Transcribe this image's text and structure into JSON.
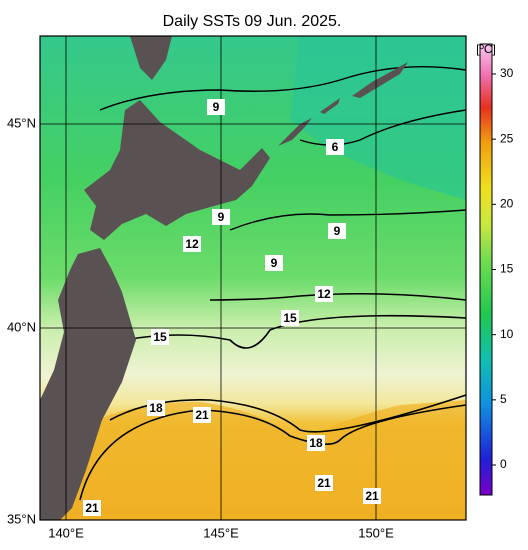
{
  "title": "Daily SSTs 09 Jun. 2025.",
  "lat_labels": [
    "45°N",
    "40°N",
    "35°N"
  ],
  "lon_labels": [
    "140°E",
    "145°E",
    "150°E"
  ],
  "colorbar": {
    "unit": "[ºC]",
    "lim": [
      -2.3,
      32.3
    ],
    "ticks": [
      30,
      25,
      20,
      15,
      10,
      5,
      0
    ]
  },
  "contour_labels": [
    "9",
    "6",
    "9",
    "12",
    "9",
    "9",
    "12",
    "15",
    "15",
    "18",
    "21",
    "18",
    "21",
    "21",
    "21"
  ]
}
